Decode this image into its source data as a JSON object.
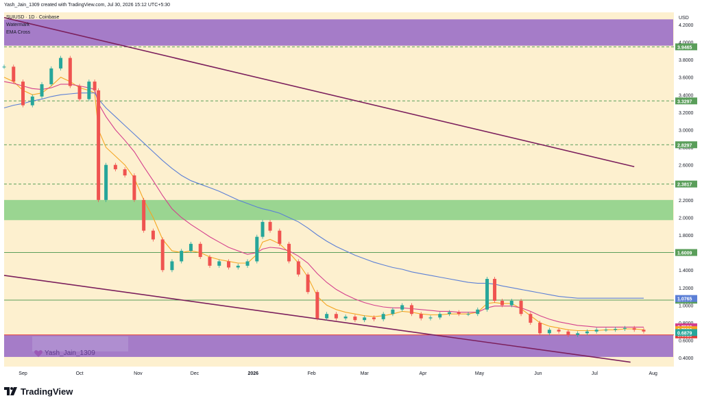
{
  "header": {
    "created_text": "Yash_Jain_1309 created with TradingView.com, Jul 30, 2026 15:12 UTC+5:30"
  },
  "legend": {
    "symbol": "SUIUSD · 1D · Coinbase",
    "line2": "Watermark",
    "line3": "EMA Cross"
  },
  "watermark": {
    "text": "Yash_Jain_1309",
    "icon": "heart-icon",
    "color": "#9b59b6"
  },
  "footer": {
    "logo_text": "TradingView",
    "logo_icon": "tradingview-logo-icon"
  },
  "chart_data": {
    "type": "line",
    "symbol": "SUIUSD",
    "timeframe": "1D",
    "exchange": "Coinbase",
    "currency": "USD",
    "y_scale": "linear",
    "ylim": [
      0.3,
      4.34
    ],
    "x_range": [
      "2025-08-22",
      "2026-08-12"
    ],
    "x_ticks": [
      {
        "label": "Sep",
        "date": "2025-09-01"
      },
      {
        "label": "Oct",
        "date": "2025-10-01"
      },
      {
        "label": "Nov",
        "date": "2025-11-01"
      },
      {
        "label": "Dec",
        "date": "2025-12-01"
      },
      {
        "label": "2026",
        "date": "2026-01-01"
      },
      {
        "label": "Feb",
        "date": "2026-02-01"
      },
      {
        "label": "Mar",
        "date": "2026-03-01"
      },
      {
        "label": "Apr",
        "date": "2026-04-01"
      },
      {
        "label": "May",
        "date": "2026-05-01"
      },
      {
        "label": "Jun",
        "date": "2026-06-01"
      },
      {
        "label": "Jul",
        "date": "2026-07-01"
      },
      {
        "label": "Aug",
        "date": "2026-08-01"
      }
    ],
    "y_ticks": [
      "4.2000",
      "4.0000",
      "3.8000",
      "3.6000",
      "3.4000",
      "3.2000",
      "3.0000",
      "2.8000",
      "2.6000",
      "2.4000",
      "2.2000",
      "2.0000",
      "1.8000",
      "1.6000",
      "1.4000",
      "1.2000",
      "1.0000",
      "0.8000",
      "0.6000",
      "0.4000"
    ],
    "y_tick_values": [
      4.2,
      4.0,
      3.8,
      3.6,
      3.4,
      3.2,
      3.0,
      2.8,
      2.6,
      2.4,
      2.2,
      2.0,
      1.8,
      1.6,
      1.4,
      1.2,
      1.0,
      0.8,
      0.6,
      0.4
    ],
    "zones": [
      {
        "name": "resistance-zone",
        "from": 3.96,
        "to": 4.26,
        "color": "#9b6fc6"
      },
      {
        "name": "demand-zone",
        "from": 1.97,
        "to": 2.2,
        "color": "#8fd18a"
      },
      {
        "name": "support-zone",
        "from": 0.41,
        "to": 0.66,
        "color": "#9b6fc6"
      }
    ],
    "levels": [
      {
        "value": 3.9465,
        "label": "3.9465",
        "style": "dashed",
        "color": "#5a9e5a"
      },
      {
        "value": 3.3297,
        "label": "3.3297",
        "style": "dashed",
        "color": "#5a9e5a"
      },
      {
        "value": 2.8297,
        "label": "2.8297",
        "style": "dashed",
        "color": "#5a9e5a"
      },
      {
        "value": 2.3817,
        "label": "2.3817",
        "style": "dashed",
        "color": "#5a9e5a"
      },
      {
        "value": 1.6009,
        "label": "1.6009",
        "style": "solid",
        "color": "#5a9e5a"
      },
      {
        "value": 1.0576,
        "label": "1.0576",
        "style": "solid",
        "color": "#5a9e5a"
      },
      {
        "value": 0.6615,
        "label": "0.6615",
        "style": "solid",
        "color": "#e53935"
      }
    ],
    "price_labels": [
      {
        "value": 1.0765,
        "label": "1.0765",
        "color": "#5b7fd6"
      },
      {
        "value": 0.7538,
        "label": "0.7538",
        "color": "#d43f8d"
      },
      {
        "value": 0.7209,
        "label": "0.7209",
        "color": "#f5a623"
      },
      {
        "value": 0.6879,
        "label": "0.6879",
        "color": "#26a69a"
      }
    ],
    "channel_lines": [
      {
        "name": "upper-channel",
        "x": [
          "2025-08-22",
          "2026-07-22"
        ],
        "y": [
          4.28,
          2.58
        ],
        "color": "#7b1f5c"
      },
      {
        "name": "lower-channel",
        "x": [
          "2025-08-22",
          "2026-07-20"
        ],
        "y": [
          1.34,
          0.35
        ],
        "color": "#7b1f5c"
      }
    ],
    "candles": {
      "x": [
        "2025-08-22",
        "2025-08-27",
        "2025-09-01",
        "2025-09-06",
        "2025-09-11",
        "2025-09-16",
        "2025-09-21",
        "2025-09-26",
        "2025-10-01",
        "2025-10-06",
        "2025-10-09",
        "2025-10-11",
        "2025-10-15",
        "2025-10-20",
        "2025-10-25",
        "2025-10-30",
        "2025-11-04",
        "2025-11-09",
        "2025-11-14",
        "2025-11-19",
        "2025-11-24",
        "2025-11-29",
        "2025-12-04",
        "2025-12-09",
        "2025-12-14",
        "2025-12-19",
        "2025-12-24",
        "2025-12-29",
        "2026-01-03",
        "2026-01-06",
        "2026-01-10",
        "2026-01-15",
        "2026-01-20",
        "2026-01-25",
        "2026-01-30",
        "2026-02-04",
        "2026-02-09",
        "2026-02-14",
        "2026-02-19",
        "2026-02-24",
        "2026-03-01",
        "2026-03-06",
        "2026-03-11",
        "2026-03-16",
        "2026-03-21",
        "2026-03-26",
        "2026-03-31",
        "2026-04-05",
        "2026-04-10",
        "2026-04-15",
        "2026-04-20",
        "2026-04-25",
        "2026-04-30",
        "2026-05-05",
        "2026-05-09",
        "2026-05-13",
        "2026-05-18",
        "2026-05-23",
        "2026-05-28",
        "2026-06-02",
        "2026-06-07",
        "2026-06-12",
        "2026-06-17",
        "2026-06-22",
        "2026-06-27",
        "2026-07-02",
        "2026-07-07",
        "2026-07-12",
        "2026-07-17",
        "2026-07-22",
        "2026-07-27"
      ],
      "close": [
        3.72,
        3.55,
        3.28,
        3.38,
        3.52,
        3.7,
        3.82,
        3.5,
        3.35,
        3.55,
        3.45,
        2.2,
        2.6,
        2.55,
        2.48,
        2.2,
        1.85,
        1.75,
        1.4,
        1.5,
        1.62,
        1.7,
        1.55,
        1.45,
        1.5,
        1.43,
        1.45,
        1.5,
        1.78,
        1.95,
        1.85,
        1.7,
        1.5,
        1.35,
        1.15,
        0.85,
        0.9,
        0.85,
        0.87,
        0.83,
        0.86,
        0.84,
        0.9,
        0.95,
        1.0,
        0.9,
        0.85,
        0.86,
        0.9,
        0.92,
        0.9,
        0.9,
        0.95,
        1.3,
        1.05,
        1.0,
        1.05,
        0.9,
        0.8,
        0.68,
        0.72,
        0.7,
        0.66,
        0.68,
        0.7,
        0.72,
        0.72,
        0.73,
        0.74,
        0.72,
        0.7
      ]
    },
    "series": [
      {
        "name": "",
        "color": "#f5a623",
        "values": [
          3.6,
          3.55,
          3.45,
          3.4,
          3.42,
          3.5,
          3.6,
          3.55,
          3.48,
          3.45,
          3.42,
          3.0,
          2.8,
          2.7,
          2.6,
          2.45,
          2.2,
          2.0,
          1.75,
          1.62,
          1.6,
          1.62,
          1.6,
          1.55,
          1.52,
          1.5,
          1.48,
          1.48,
          1.58,
          1.72,
          1.75,
          1.7,
          1.6,
          1.48,
          1.32,
          1.1,
          1.0,
          0.95,
          0.92,
          0.9,
          0.88,
          0.87,
          0.88,
          0.9,
          0.93,
          0.92,
          0.9,
          0.89,
          0.89,
          0.9,
          0.9,
          0.9,
          0.92,
          1.02,
          1.03,
          1.02,
          1.02,
          0.96,
          0.88,
          0.8,
          0.76,
          0.74,
          0.72,
          0.71,
          0.71,
          0.71,
          0.72,
          0.72,
          0.73,
          0.73,
          0.72
        ]
      },
      {
        "name": "",
        "color": "#d43f8d",
        "values": [
          3.55,
          3.53,
          3.5,
          3.47,
          3.46,
          3.48,
          3.52,
          3.52,
          3.5,
          3.48,
          3.46,
          3.3,
          3.15,
          3.0,
          2.88,
          2.75,
          2.58,
          2.42,
          2.25,
          2.1,
          2.0,
          1.92,
          1.85,
          1.78,
          1.72,
          1.66,
          1.62,
          1.58,
          1.6,
          1.64,
          1.66,
          1.65,
          1.62,
          1.56,
          1.48,
          1.36,
          1.26,
          1.18,
          1.12,
          1.07,
          1.03,
          1.0,
          0.98,
          0.97,
          0.97,
          0.96,
          0.95,
          0.94,
          0.93,
          0.93,
          0.92,
          0.92,
          0.92,
          0.97,
          0.99,
          0.99,
          0.99,
          0.97,
          0.93,
          0.88,
          0.84,
          0.81,
          0.79,
          0.77,
          0.76,
          0.75,
          0.75,
          0.75,
          0.75,
          0.75,
          0.75
        ]
      },
      {
        "name": "",
        "color": "#5b7fd6",
        "values": [
          3.25,
          3.28,
          3.3,
          3.33,
          3.35,
          3.38,
          3.4,
          3.41,
          3.42,
          3.42,
          3.42,
          3.35,
          3.25,
          3.15,
          3.05,
          2.95,
          2.85,
          2.75,
          2.65,
          2.56,
          2.48,
          2.42,
          2.38,
          2.34,
          2.3,
          2.25,
          2.2,
          2.16,
          2.12,
          2.1,
          2.08,
          2.05,
          2.0,
          1.95,
          1.88,
          1.8,
          1.73,
          1.67,
          1.62,
          1.57,
          1.53,
          1.49,
          1.46,
          1.43,
          1.41,
          1.38,
          1.36,
          1.34,
          1.32,
          1.3,
          1.28,
          1.26,
          1.25,
          1.25,
          1.24,
          1.22,
          1.2,
          1.18,
          1.16,
          1.14,
          1.12,
          1.1,
          1.09,
          1.08,
          1.08,
          1.08,
          1.08,
          1.08,
          1.08,
          1.08,
          1.08
        ]
      }
    ]
  }
}
